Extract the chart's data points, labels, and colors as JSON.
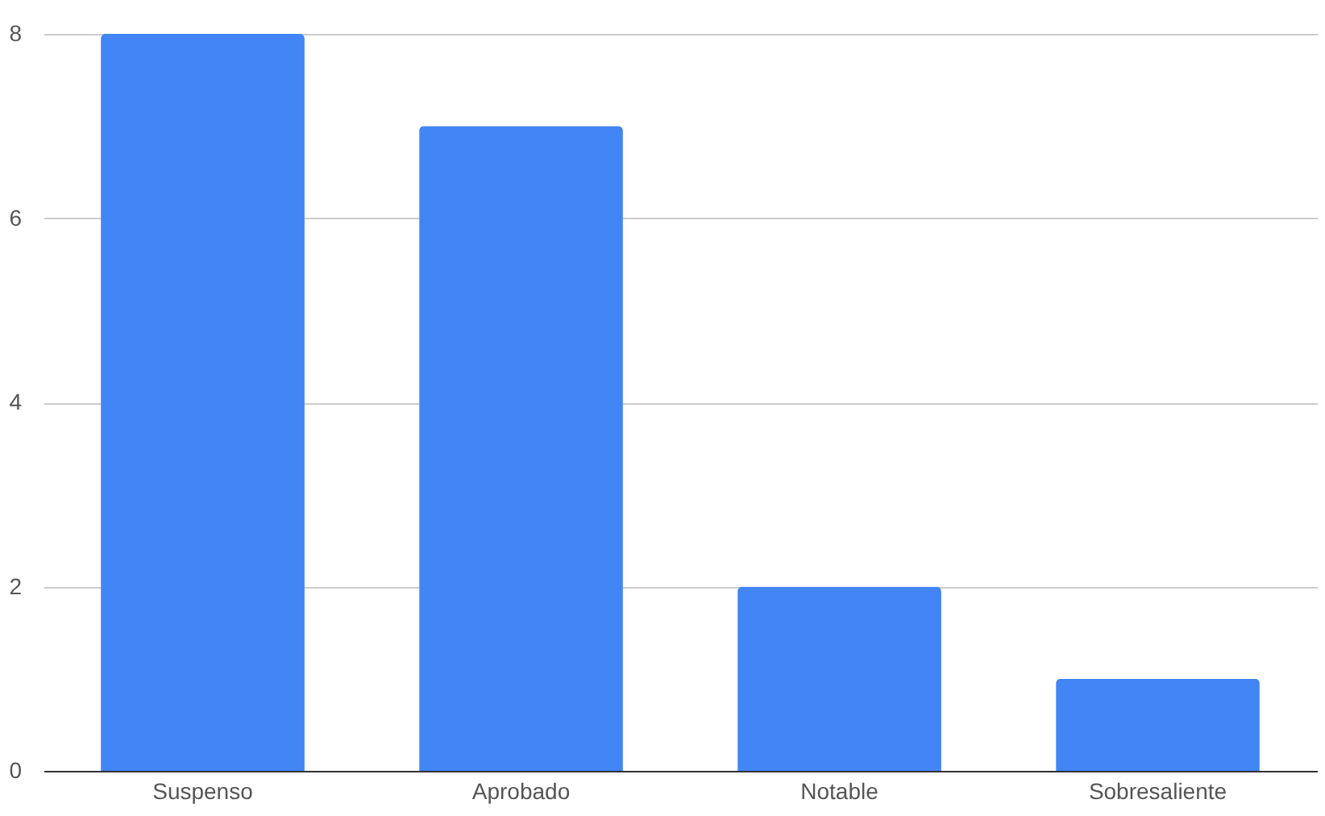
{
  "chart_data": {
    "type": "bar",
    "categories": [
      "Suspenso",
      "Aprobado",
      "Notable",
      "Sobresaliente"
    ],
    "values": [
      8,
      7,
      2,
      1
    ],
    "color": "#4285f4",
    "ylim": [
      0,
      8
    ],
    "yticks": [
      0,
      2,
      4,
      6,
      8
    ],
    "grid": "y"
  }
}
